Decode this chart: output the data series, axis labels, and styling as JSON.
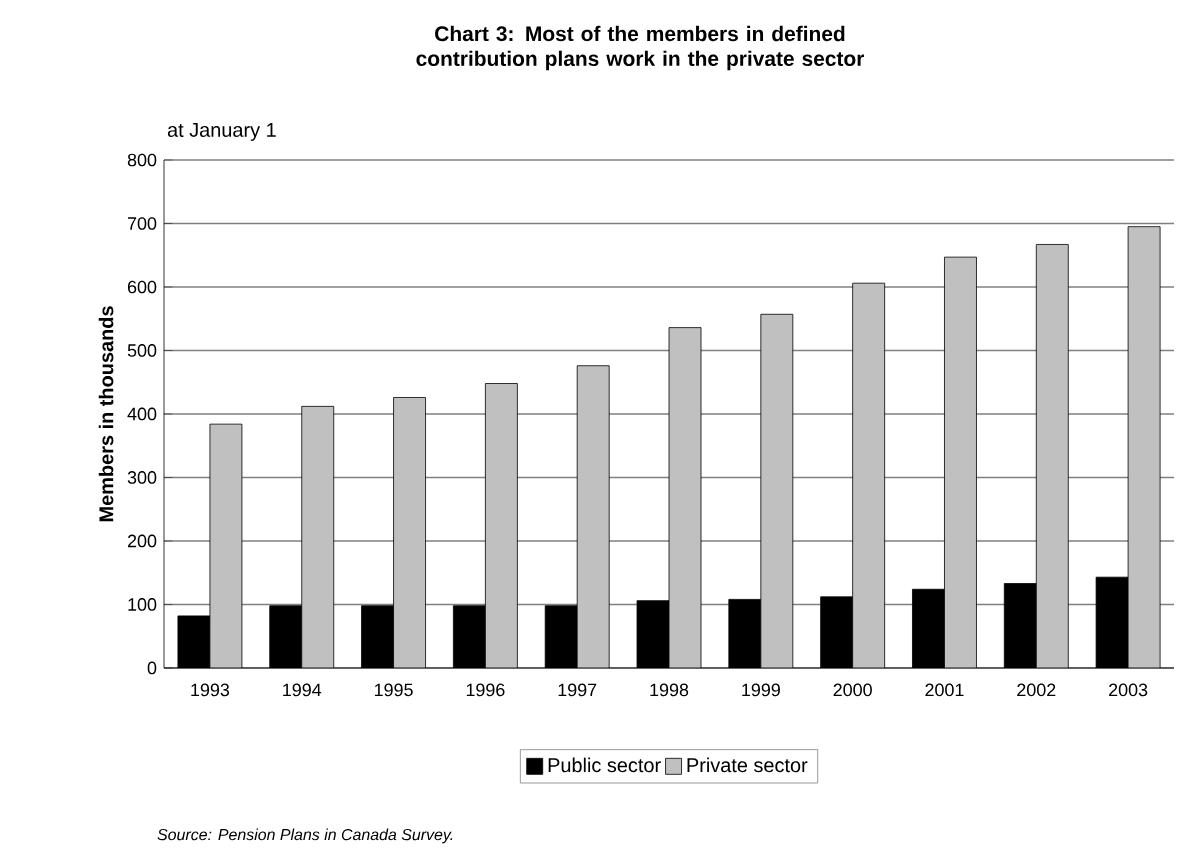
{
  "chart_data": {
    "type": "bar",
    "title": "Chart 3: Most of the members in defined contribution plans work in the private sector",
    "subtitle": "at January 1",
    "ylabel": "Members in thousands",
    "categories": [
      "1993",
      "1994",
      "1995",
      "1996",
      "1997",
      "1998",
      "1999",
      "2000",
      "2001",
      "2002",
      "2003"
    ],
    "series": [
      {
        "name": "Public sector",
        "color": "#000000",
        "values": [
          82,
          98,
          98,
          98,
          98,
          106,
          108,
          112,
          124,
          133,
          143
        ]
      },
      {
        "name": "Private sector",
        "color": "#c0c0c0",
        "values": [
          384,
          412,
          426,
          448,
          476,
          536,
          557,
          606,
          647,
          667,
          695
        ]
      }
    ],
    "ylim": [
      0,
      800
    ],
    "yticks": [
      0,
      100,
      200,
      300,
      400,
      500,
      600,
      700,
      800
    ],
    "grid": "y",
    "legend": "bottom",
    "annotations": [
      "Source: Pension Plans in Canada Survey."
    ]
  }
}
